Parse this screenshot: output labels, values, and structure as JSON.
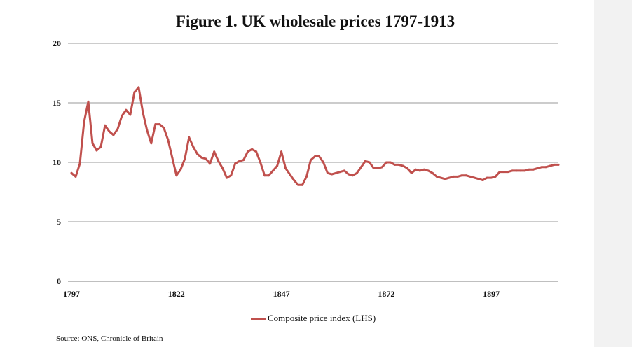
{
  "chart_data": {
    "type": "line",
    "title": "Figure 1. UK wholesale prices 1797-1913",
    "xlabel": "",
    "ylabel": "",
    "xlim": [
      1797,
      1913
    ],
    "ylim": [
      0,
      20
    ],
    "x_ticks": [
      1797,
      1822,
      1847,
      1872,
      1897
    ],
    "y_ticks": [
      0,
      5,
      10,
      15,
      20
    ],
    "grid": true,
    "legend_position": "bottom-center",
    "series": [
      {
        "name": "Composite price index (LHS)",
        "color": "#c0504d",
        "x": [
          1797,
          1798,
          1799,
          1800,
          1801,
          1802,
          1803,
          1804,
          1805,
          1806,
          1807,
          1808,
          1809,
          1810,
          1811,
          1812,
          1813,
          1814,
          1815,
          1816,
          1817,
          1818,
          1819,
          1820,
          1821,
          1822,
          1823,
          1824,
          1825,
          1826,
          1827,
          1828,
          1829,
          1830,
          1831,
          1832,
          1833,
          1834,
          1835,
          1836,
          1837,
          1838,
          1839,
          1840,
          1841,
          1842,
          1843,
          1844,
          1845,
          1846,
          1847,
          1848,
          1849,
          1850,
          1851,
          1852,
          1853,
          1854,
          1855,
          1856,
          1857,
          1858,
          1859,
          1860,
          1861,
          1862,
          1863,
          1864,
          1865,
          1866,
          1867,
          1868,
          1869,
          1870,
          1871,
          1872,
          1873,
          1874,
          1875,
          1876,
          1877,
          1878,
          1879,
          1880,
          1881,
          1882,
          1883,
          1884,
          1885,
          1886,
          1887,
          1888,
          1889,
          1890,
          1891,
          1892,
          1893,
          1894,
          1895,
          1896,
          1897,
          1898,
          1899,
          1900,
          1901,
          1902,
          1903,
          1904,
          1905,
          1906,
          1907,
          1908,
          1909,
          1910,
          1911,
          1912,
          1913
        ],
        "values": [
          9.1,
          8.8,
          9.9,
          13.4,
          15.1,
          11.6,
          11.0,
          11.3,
          13.1,
          12.6,
          12.3,
          12.8,
          13.9,
          14.4,
          14.0,
          15.9,
          16.3,
          14.2,
          12.7,
          11.6,
          13.2,
          13.2,
          12.9,
          11.9,
          10.4,
          8.9,
          9.4,
          10.3,
          12.1,
          11.3,
          10.7,
          10.4,
          10.3,
          9.9,
          10.9,
          10.1,
          9.5,
          8.7,
          8.9,
          9.9,
          10.1,
          10.2,
          10.9,
          11.1,
          10.9,
          10.0,
          8.9,
          8.9,
          9.3,
          9.7,
          10.9,
          9.5,
          9.0,
          8.5,
          8.1,
          8.1,
          8.8,
          10.2,
          10.5,
          10.5,
          10.0,
          9.1,
          9.0,
          9.1,
          9.2,
          9.3,
          9.0,
          8.9,
          9.1,
          9.6,
          10.1,
          10.0,
          9.5,
          9.5,
          9.6,
          10.0,
          10.0,
          9.8,
          9.8,
          9.7,
          9.5,
          9.1,
          9.4,
          9.3,
          9.4,
          9.3,
          9.1,
          8.8,
          8.7,
          8.6,
          8.7,
          8.8,
          8.8,
          8.9,
          8.9,
          8.8,
          8.7,
          8.6,
          8.5,
          8.7,
          8.7,
          8.8,
          9.2,
          9.2,
          9.2,
          9.3,
          9.3,
          9.3,
          9.3,
          9.4,
          9.4,
          9.5,
          9.6,
          9.6,
          9.7,
          9.8,
          9.8
        ]
      }
    ]
  },
  "source_text": "Source: ONS, Chronicle of Britain"
}
